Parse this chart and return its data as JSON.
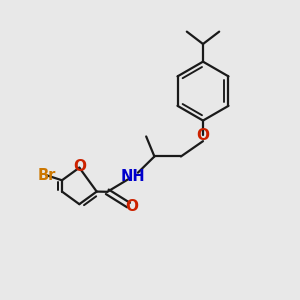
{
  "bg_color": "#e8e8e8",
  "bond_color": "#1a1a1a",
  "oxygen_color": "#cc2200",
  "nitrogen_color": "#0000cc",
  "bromine_color": "#cc7700",
  "ring_oxygen_color": "#cc2200",
  "line_width": 1.6,
  "figsize": [
    3.0,
    3.0
  ],
  "dpi": 100,
  "xlim": [
    0,
    10
  ],
  "ylim": [
    0,
    10
  ]
}
